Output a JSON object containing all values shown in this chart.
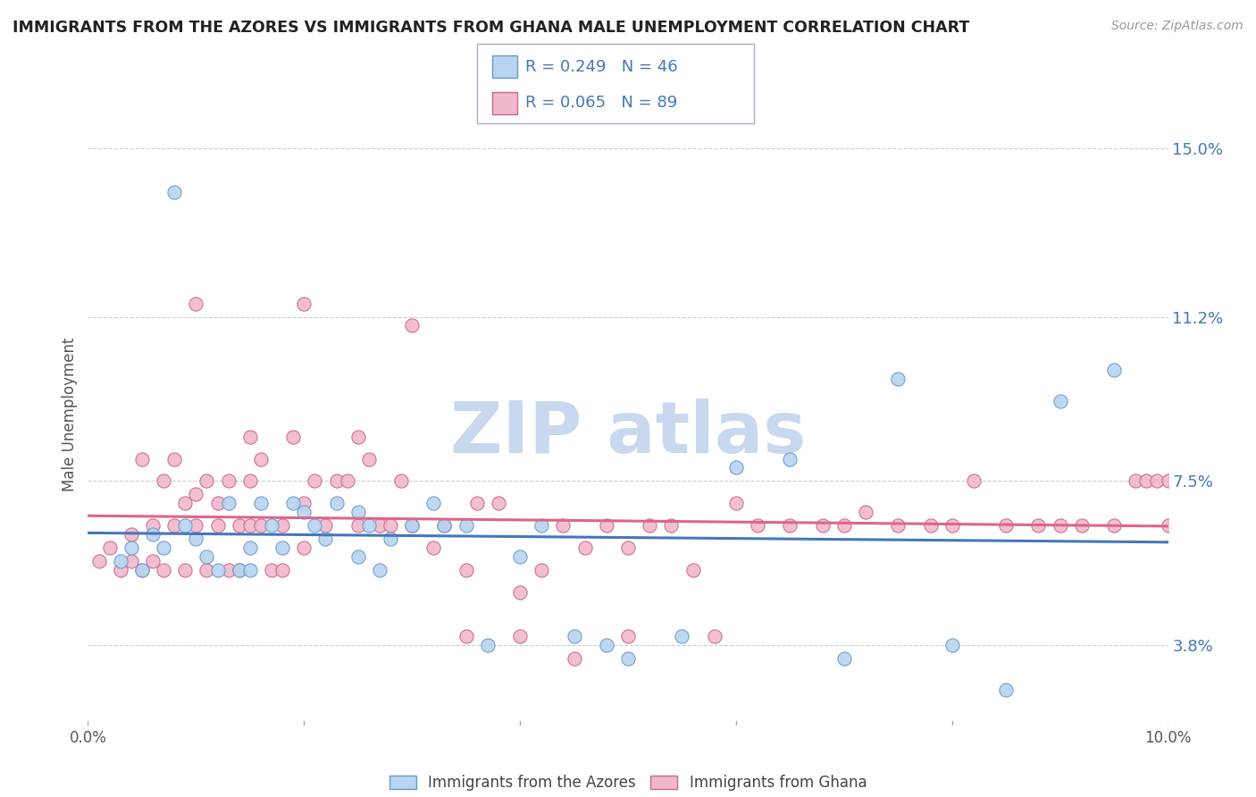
{
  "title": "IMMIGRANTS FROM THE AZORES VS IMMIGRANTS FROM GHANA MALE UNEMPLOYMENT CORRELATION CHART",
  "source": "Source: ZipAtlas.com",
  "ylabel": "Male Unemployment",
  "xlim": [
    0.0,
    0.1
  ],
  "ylim": [
    0.02,
    0.16
  ],
  "yticks": [
    0.038,
    0.075,
    0.112,
    0.15
  ],
  "ytick_labels": [
    "3.8%",
    "7.5%",
    "11.2%",
    "15.0%"
  ],
  "xticks": [
    0.0,
    0.02,
    0.04,
    0.06,
    0.08,
    0.1
  ],
  "xtick_labels": [
    "0.0%",
    "",
    "",
    "",
    "",
    "10.0%"
  ],
  "blue_R": 0.249,
  "blue_N": 46,
  "pink_R": 0.065,
  "pink_N": 89,
  "blue_label": "Immigrants from the Azores",
  "pink_label": "Immigrants from Ghana",
  "blue_color": "#b8d4f0",
  "pink_color": "#f0b8cc",
  "blue_edge_color": "#6699cc",
  "pink_edge_color": "#cc6688",
  "blue_line_color": "#4477bb",
  "pink_line_color": "#dd6688",
  "text_blue_color": "#4477bb",
  "watermark_color": "#c8d8ee",
  "background_color": "#ffffff",
  "grid_color": "#ccccdd",
  "title_color": "#222222",
  "blue_scatter_x": [
    0.003,
    0.004,
    0.005,
    0.006,
    0.007,
    0.008,
    0.009,
    0.01,
    0.011,
    0.012,
    0.013,
    0.014,
    0.015,
    0.015,
    0.016,
    0.017,
    0.018,
    0.019,
    0.02,
    0.021,
    0.022,
    0.023,
    0.025,
    0.025,
    0.026,
    0.027,
    0.028,
    0.03,
    0.032,
    0.033,
    0.035,
    0.037,
    0.04,
    0.042,
    0.045,
    0.048,
    0.05,
    0.055,
    0.06,
    0.065,
    0.07,
    0.075,
    0.08,
    0.085,
    0.09,
    0.095
  ],
  "blue_scatter_y": [
    0.057,
    0.06,
    0.055,
    0.063,
    0.06,
    0.14,
    0.065,
    0.062,
    0.058,
    0.055,
    0.07,
    0.055,
    0.06,
    0.055,
    0.07,
    0.065,
    0.06,
    0.07,
    0.068,
    0.065,
    0.062,
    0.07,
    0.068,
    0.058,
    0.065,
    0.055,
    0.062,
    0.065,
    0.07,
    0.065,
    0.065,
    0.038,
    0.058,
    0.065,
    0.04,
    0.038,
    0.035,
    0.04,
    0.078,
    0.08,
    0.035,
    0.098,
    0.038,
    0.028,
    0.093,
    0.1
  ],
  "pink_scatter_x": [
    0.001,
    0.002,
    0.003,
    0.004,
    0.004,
    0.005,
    0.005,
    0.006,
    0.006,
    0.007,
    0.007,
    0.008,
    0.008,
    0.009,
    0.009,
    0.01,
    0.01,
    0.011,
    0.011,
    0.012,
    0.012,
    0.013,
    0.013,
    0.014,
    0.014,
    0.015,
    0.015,
    0.016,
    0.016,
    0.017,
    0.018,
    0.018,
    0.019,
    0.02,
    0.02,
    0.021,
    0.022,
    0.023,
    0.024,
    0.025,
    0.026,
    0.027,
    0.028,
    0.029,
    0.03,
    0.032,
    0.033,
    0.035,
    0.036,
    0.038,
    0.04,
    0.042,
    0.044,
    0.046,
    0.048,
    0.05,
    0.052,
    0.054,
    0.056,
    0.058,
    0.06,
    0.062,
    0.065,
    0.068,
    0.07,
    0.072,
    0.075,
    0.078,
    0.08,
    0.082,
    0.085,
    0.088,
    0.09,
    0.092,
    0.095,
    0.097,
    0.098,
    0.099,
    0.1,
    0.1,
    0.01,
    0.015,
    0.02,
    0.025,
    0.03,
    0.035,
    0.04,
    0.045,
    0.05
  ],
  "pink_scatter_y": [
    0.057,
    0.06,
    0.055,
    0.063,
    0.057,
    0.08,
    0.055,
    0.065,
    0.057,
    0.075,
    0.055,
    0.08,
    0.065,
    0.055,
    0.07,
    0.065,
    0.072,
    0.055,
    0.075,
    0.065,
    0.07,
    0.055,
    0.075,
    0.065,
    0.055,
    0.065,
    0.075,
    0.08,
    0.065,
    0.055,
    0.055,
    0.065,
    0.085,
    0.06,
    0.07,
    0.075,
    0.065,
    0.075,
    0.075,
    0.065,
    0.08,
    0.065,
    0.065,
    0.075,
    0.065,
    0.06,
    0.065,
    0.055,
    0.07,
    0.07,
    0.05,
    0.055,
    0.065,
    0.06,
    0.065,
    0.06,
    0.065,
    0.065,
    0.055,
    0.04,
    0.07,
    0.065,
    0.065,
    0.065,
    0.065,
    0.068,
    0.065,
    0.065,
    0.065,
    0.075,
    0.065,
    0.065,
    0.065,
    0.065,
    0.065,
    0.075,
    0.075,
    0.075,
    0.065,
    0.075,
    0.115,
    0.085,
    0.115,
    0.085,
    0.11,
    0.04,
    0.04,
    0.035,
    0.04
  ]
}
